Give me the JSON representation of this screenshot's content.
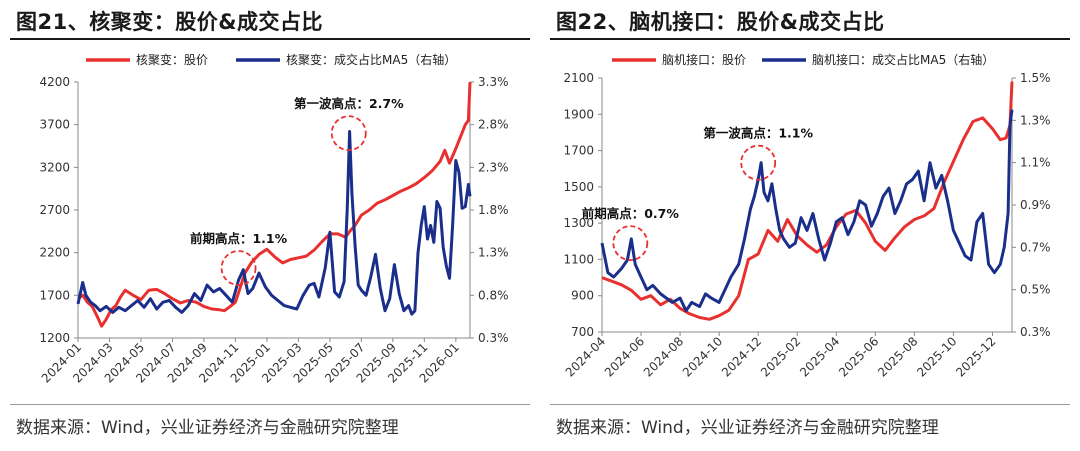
{
  "colors": {
    "price": "#e8302f",
    "ratio": "#1a2f8c",
    "circle": "#e8302f"
  },
  "charts": [
    {
      "id": "left",
      "title": "图21、核聚变：股价&成交占比",
      "source": "数据来源：Wind，兴业证券经济与金融研究院整理",
      "legend": [
        "核聚变：股价",
        "核聚变：成交占比MA5（右轴）"
      ],
      "annotations": [
        {
          "text": "前期高点：1.1%",
          "x": 10.2,
          "y2": 1.12
        },
        {
          "text": "第一波高点：2.7%",
          "x": 17.2,
          "y2": 2.7
        }
      ]
    },
    {
      "id": "right",
      "title": "图22、脑机接口：股价&成交占比",
      "source": "数据来源：Wind，兴业证券经济与金融研究院整理",
      "legend": [
        "脑机接口：股价",
        "脑机接口：成交占比MA5（右轴）"
      ],
      "annotations": [
        {
          "text": "前期高点：0.7%",
          "x": 1.45,
          "y2": 0.72
        },
        {
          "text": "第一波高点：1.1%",
          "x": 8.0,
          "y2": 1.1
        }
      ]
    }
  ],
  "chart_data": [
    {
      "type": "line",
      "title": "核聚变：股价&成交占比",
      "x_unit": "months since 2024-01",
      "x_ticks": [
        "2024-01",
        "2024-03",
        "2024-05",
        "2024-07",
        "2024-09",
        "2024-11",
        "2025-01",
        "2025-03",
        "2025-05",
        "2025-07",
        "2025-09",
        "2025-11",
        "2026-01"
      ],
      "x_range": [
        0,
        24.9
      ],
      "y_left": {
        "ticks": [
          1200,
          1700,
          2200,
          2700,
          3200,
          3700,
          4200
        ],
        "range": [
          1200,
          4200
        ]
      },
      "y_right": {
        "ticks": [
          "0.3%",
          "0.8%",
          "1.3%",
          "1.8%",
          "2.3%",
          "2.8%",
          "3.3%"
        ],
        "range": [
          0.3,
          3.3
        ]
      },
      "series": [
        {
          "name": "核聚变：股价",
          "axis": "left",
          "x": [
            0,
            0.3,
            0.6,
            0.9,
            1.2,
            1.5,
            1.8,
            2.1,
            2.4,
            2.7,
            3,
            3.5,
            4,
            4.5,
            5,
            5.5,
            6,
            6.5,
            7,
            7.5,
            8,
            8.5,
            9,
            9.3,
            9.6,
            10,
            10.3,
            10.6,
            11,
            11.5,
            12,
            12.5,
            13,
            13.5,
            14,
            14.5,
            15,
            15.5,
            16,
            16.5,
            17,
            17.3,
            17.6,
            18,
            18.5,
            19,
            19.5,
            20,
            20.5,
            21,
            21.5,
            22,
            22.5,
            23,
            23.3,
            23.6,
            24,
            24.3,
            24.6,
            24.8,
            24.9
          ],
          "values": [
            1660,
            1700,
            1620,
            1570,
            1460,
            1340,
            1420,
            1530,
            1580,
            1680,
            1760,
            1700,
            1650,
            1760,
            1770,
            1720,
            1660,
            1610,
            1640,
            1620,
            1570,
            1540,
            1530,
            1520,
            1560,
            1620,
            1790,
            1960,
            2080,
            2180,
            2240,
            2150,
            2080,
            2120,
            2140,
            2160,
            2230,
            2330,
            2420,
            2420,
            2380,
            2460,
            2520,
            2640,
            2700,
            2780,
            2820,
            2870,
            2920,
            2960,
            3010,
            3080,
            3160,
            3270,
            3400,
            3250,
            3420,
            3560,
            3700,
            3750,
            4200
          ]
        },
        {
          "name": "核聚变：成交占比MA5（右轴）",
          "axis": "right",
          "x": [
            0,
            0.3,
            0.5,
            0.8,
            1.1,
            1.4,
            1.8,
            2.2,
            2.6,
            3,
            3.4,
            3.8,
            4.2,
            4.6,
            5,
            5.4,
            5.8,
            6.2,
            6.6,
            7,
            7.4,
            7.8,
            8.2,
            8.6,
            9,
            9.4,
            9.8,
            10.2,
            10.5,
            10.8,
            11.1,
            11.5,
            11.9,
            12.3,
            12.7,
            13.1,
            13.5,
            13.9,
            14.3,
            14.7,
            15,
            15.3,
            15.7,
            16,
            16.3,
            16.6,
            16.9,
            17.1,
            17.25,
            17.4,
            17.6,
            17.8,
            18,
            18.3,
            18.6,
            18.9,
            19.2,
            19.5,
            19.8,
            20.1,
            20.4,
            20.7,
            21,
            21.2,
            21.4,
            21.6,
            21.8,
            22,
            22.2,
            22.4,
            22.6,
            22.8,
            23,
            23.2,
            23.4,
            23.6,
            23.8,
            24,
            24.2,
            24.4,
            24.6,
            24.8,
            24.9
          ],
          "values": [
            0.7,
            0.95,
            0.8,
            0.72,
            0.68,
            0.62,
            0.67,
            0.6,
            0.66,
            0.62,
            0.68,
            0.74,
            0.66,
            0.76,
            0.64,
            0.72,
            0.74,
            0.66,
            0.6,
            0.68,
            0.82,
            0.74,
            0.92,
            0.84,
            0.88,
            0.8,
            0.72,
            0.98,
            1.1,
            0.82,
            0.88,
            1.06,
            0.9,
            0.8,
            0.74,
            0.68,
            0.66,
            0.64,
            0.8,
            0.92,
            0.94,
            0.78,
            1.12,
            1.54,
            0.84,
            0.78,
            0.96,
            1.8,
            2.72,
            2.0,
            1.38,
            0.92,
            0.86,
            0.8,
            1.02,
            1.28,
            0.88,
            0.62,
            0.76,
            1.16,
            0.82,
            0.62,
            0.68,
            0.58,
            0.62,
            1.3,
            1.62,
            1.84,
            1.46,
            1.62,
            1.42,
            1.9,
            1.82,
            1.36,
            1.14,
            1.0,
            1.64,
            2.38,
            2.24,
            1.82,
            1.84,
            2.1,
            1.96
          ]
        }
      ]
    },
    {
      "type": "line",
      "title": "脑机接口：股价&成交占比",
      "x_unit": "months since 2024-04",
      "x_ticks": [
        "2024-04",
        "2024-06",
        "2024-08",
        "2024-10",
        "2024-12",
        "2025-02",
        "2025-04",
        "2025-06",
        "2025-08",
        "2025-10",
        "2025-12"
      ],
      "x_range": [
        0,
        21
      ],
      "y_left": {
        "ticks": [
          700,
          900,
          1100,
          1300,
          1500,
          1700,
          1900,
          2100
        ],
        "range": [
          700,
          2100
        ]
      },
      "y_right": {
        "ticks": [
          "0.3%",
          "0.5%",
          "0.7%",
          "0.9%",
          "1.1%",
          "1.3%",
          "1.5%"
        ],
        "range": [
          0.3,
          1.5
        ]
      },
      "series": [
        {
          "name": "脑机接口：股价",
          "axis": "left",
          "x": [
            0,
            0.5,
            1,
            1.5,
            2,
            2.5,
            3,
            3.5,
            4,
            4.5,
            5,
            5.5,
            6,
            6.5,
            7,
            7.5,
            8,
            8.5,
            9,
            9.5,
            10,
            10.5,
            11,
            11.5,
            12,
            12.5,
            13,
            13.5,
            14,
            14.5,
            15,
            15.5,
            16,
            16.5,
            17,
            17.5,
            18,
            18.5,
            19,
            19.5,
            20,
            20.4,
            20.7,
            20.9,
            21
          ],
          "values": [
            1000,
            980,
            960,
            930,
            880,
            900,
            850,
            880,
            830,
            800,
            780,
            770,
            790,
            820,
            900,
            1100,
            1130,
            1260,
            1200,
            1320,
            1230,
            1180,
            1140,
            1180,
            1280,
            1350,
            1370,
            1300,
            1200,
            1150,
            1220,
            1280,
            1320,
            1340,
            1380,
            1520,
            1640,
            1760,
            1860,
            1880,
            1820,
            1760,
            1770,
            1840,
            2080
          ]
        },
        {
          "name": "脑机接口：成交占比MA5（右轴）",
          "axis": "right",
          "x": [
            0,
            0.3,
            0.6,
            1,
            1.3,
            1.5,
            1.7,
            2,
            2.3,
            2.6,
            3,
            3.3,
            3.6,
            4,
            4.3,
            4.6,
            5,
            5.3,
            5.6,
            6,
            6.3,
            6.6,
            7,
            7.3,
            7.6,
            7.8,
            8,
            8.15,
            8.3,
            8.5,
            8.7,
            8.9,
            9.1,
            9.3,
            9.6,
            9.9,
            10.2,
            10.5,
            10.8,
            11.1,
            11.4,
            11.7,
            12,
            12.3,
            12.6,
            12.9,
            13.2,
            13.5,
            13.8,
            14.1,
            14.4,
            14.7,
            15,
            15.3,
            15.6,
            15.9,
            16.2,
            16.5,
            16.8,
            17.1,
            17.4,
            17.7,
            18,
            18.3,
            18.6,
            18.9,
            19.2,
            19.5,
            19.8,
            20.1,
            20.4,
            20.6,
            20.8,
            20.9,
            21
          ],
          "values": [
            0.72,
            0.58,
            0.56,
            0.6,
            0.64,
            0.74,
            0.62,
            0.56,
            0.5,
            0.52,
            0.48,
            0.46,
            0.44,
            0.46,
            0.4,
            0.44,
            0.42,
            0.48,
            0.46,
            0.44,
            0.5,
            0.56,
            0.62,
            0.74,
            0.88,
            0.94,
            1.02,
            1.1,
            0.96,
            0.92,
            1.0,
            0.88,
            0.78,
            0.74,
            0.7,
            0.72,
            0.84,
            0.78,
            0.86,
            0.74,
            0.64,
            0.72,
            0.82,
            0.84,
            0.76,
            0.82,
            0.92,
            0.9,
            0.8,
            0.86,
            0.94,
            0.98,
            0.86,
            0.92,
            1.0,
            1.02,
            1.06,
            0.92,
            1.1,
            0.98,
            1.04,
            0.92,
            0.78,
            0.72,
            0.66,
            0.64,
            0.82,
            0.86,
            0.62,
            0.58,
            0.62,
            0.7,
            0.86,
            1.28,
            1.35
          ]
        }
      ]
    }
  ]
}
